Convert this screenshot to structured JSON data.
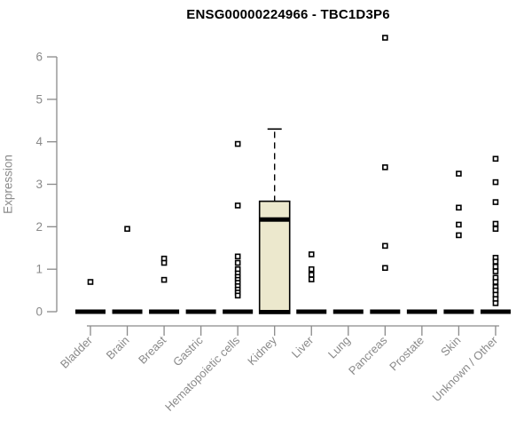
{
  "title": "ENSG00000224966 - TBC1D3P6",
  "chart_data": {
    "type": "boxplot",
    "title": "ENSG00000224966 - TBC1D3P6",
    "ylabel": "Expression",
    "xlabel": "",
    "ylim": [
      0,
      6
    ],
    "yticks": [
      0,
      1,
      2,
      3,
      4,
      5,
      6
    ],
    "grid": false,
    "legend": false,
    "categories": [
      "Bladder",
      "Brain",
      "Breast",
      "Gastric",
      "Hematopoietic cells",
      "Kidney",
      "Liver",
      "Lung",
      "Pancreas",
      "Prostate",
      "Skin",
      "Unknown / Other"
    ],
    "groups": [
      {
        "label": "Bladder",
        "box": {
          "q1": 0,
          "median": 0,
          "q3": 0,
          "whisker_low": 0,
          "whisker_high": 0
        },
        "points": [
          0.7
        ]
      },
      {
        "label": "Brain",
        "box": {
          "q1": 0,
          "median": 0,
          "q3": 0,
          "whisker_low": 0,
          "whisker_high": 0
        },
        "points": [
          1.95
        ]
      },
      {
        "label": "Breast",
        "box": {
          "q1": 0,
          "median": 0,
          "q3": 0,
          "whisker_low": 0,
          "whisker_high": 0
        },
        "points": [
          1.25,
          1.15,
          0.75
        ]
      },
      {
        "label": "Gastric",
        "box": {
          "q1": 0,
          "median": 0,
          "q3": 0,
          "whisker_low": 0,
          "whisker_high": 0
        },
        "points": []
      },
      {
        "label": "Hematopoietic cells",
        "box": {
          "q1": 0,
          "median": 0,
          "q3": 0,
          "whisker_low": 0,
          "whisker_high": 0
        },
        "points": [
          3.95,
          2.5,
          1.3,
          1.15,
          1.0,
          0.9,
          0.82,
          0.75,
          0.68,
          0.6,
          0.52,
          0.45,
          0.38
        ]
      },
      {
        "label": "Kidney",
        "box": {
          "q1": 0,
          "median": 2.17,
          "q3": 2.6,
          "whisker_low": 0,
          "whisker_high": 4.3
        },
        "points": []
      },
      {
        "label": "Liver",
        "box": {
          "q1": 0,
          "median": 0,
          "q3": 0,
          "whisker_low": 0,
          "whisker_high": 0
        },
        "points": [
          1.35,
          1.0,
          0.87,
          0.76
        ]
      },
      {
        "label": "Lung",
        "box": {
          "q1": 0,
          "median": 0,
          "q3": 0,
          "whisker_low": 0,
          "whisker_high": 0
        },
        "points": []
      },
      {
        "label": "Pancreas",
        "box": {
          "q1": 0,
          "median": 0,
          "q3": 0,
          "whisker_low": 0,
          "whisker_high": 0
        },
        "points": [
          6.45,
          3.4,
          1.55,
          1.03
        ]
      },
      {
        "label": "Prostate",
        "box": {
          "q1": 0,
          "median": 0,
          "q3": 0,
          "whisker_low": 0,
          "whisker_high": 0
        },
        "points": []
      },
      {
        "label": "Skin",
        "box": {
          "q1": 0,
          "median": 0,
          "q3": 0,
          "whisker_low": 0,
          "whisker_high": 0
        },
        "points": [
          3.25,
          2.45,
          2.05,
          1.8
        ]
      },
      {
        "label": "Unknown / Other",
        "box": {
          "q1": 0,
          "median": 0,
          "q3": 0,
          "whisker_low": 0,
          "whisker_high": 0
        },
        "points": [
          3.6,
          3.05,
          2.58,
          2.07,
          1.95,
          1.27,
          1.18,
          1.06,
          0.95,
          0.8,
          0.7,
          0.58,
          0.5,
          0.4,
          0.3,
          0.2
        ]
      }
    ],
    "colors": {
      "box_fill": "#ece8cd",
      "box_stroke": "#000000",
      "median": "#000000",
      "zero_bar": "#000000",
      "point_fill": "#ffffff",
      "point_stroke": "#000000",
      "axis": "#8a8a8a",
      "tick_label": "#8a8a8a",
      "title": "#000000"
    }
  }
}
